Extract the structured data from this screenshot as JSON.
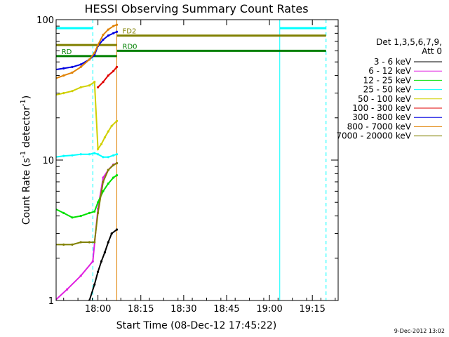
{
  "chart_data": {
    "type": "line",
    "title": "HESSI Observing Summary Count Rates",
    "xlabel": "Start Time (08-Dec-12 17:45:22)",
    "ylabel_main": "Count Rate (s",
    "ylabel_sup1": "-1",
    "ylabel_mid": " detector",
    "ylabel_sup2": "-1",
    "ylabel_end": ")",
    "yscale": "log",
    "ylim": [
      1,
      100
    ],
    "x_ticks": [
      "18:00",
      "18:15",
      "18:30",
      "18:45",
      "19:00",
      "19:15"
    ],
    "y_ticks": [
      "1",
      "10",
      "100"
    ],
    "legend_header": [
      "Det 1,3,5,6,7,9,",
      "Att 0"
    ],
    "footer_date": "9-Dec-2012 13:02",
    "series": [
      {
        "name": "3 - 6 keV",
        "color": "#000000",
        "points": [
          [
            17.95,
            1.0
          ],
          [
            17.98,
            1.3
          ],
          [
            18.0,
            1.6
          ],
          [
            18.02,
            1.9
          ],
          [
            18.04,
            2.2
          ],
          [
            18.06,
            2.6
          ],
          [
            18.08,
            3.0
          ],
          [
            18.11,
            3.2
          ]
        ]
      },
      {
        "name": "6 - 12 keV",
        "color": "#e020e0",
        "points": [
          [
            17.75,
            1.0
          ],
          [
            17.82,
            1.2
          ],
          [
            17.9,
            1.5
          ],
          [
            17.97,
            1.9
          ],
          [
            18.0,
            4.5
          ],
          [
            18.03,
            7.5
          ],
          [
            18.06,
            8.5
          ],
          [
            18.09,
            9.3
          ],
          [
            18.11,
            9.5
          ]
        ]
      },
      {
        "name": "12 - 25 keV",
        "color": "#00e000",
        "points": [
          [
            17.75,
            4.5
          ],
          [
            17.8,
            4.2
          ],
          [
            17.85,
            3.9
          ],
          [
            17.9,
            4.0
          ],
          [
            17.95,
            4.2
          ],
          [
            17.98,
            4.3
          ],
          [
            18.0,
            5.0
          ],
          [
            18.03,
            6.0
          ],
          [
            18.06,
            6.8
          ],
          [
            18.09,
            7.5
          ],
          [
            18.11,
            7.8
          ]
        ]
      },
      {
        "name": "25 - 50 keV",
        "color": "#00ffff",
        "points": [
          [
            17.75,
            10.5
          ],
          [
            17.8,
            10.7
          ],
          [
            17.85,
            10.8
          ],
          [
            17.9,
            11.0
          ],
          [
            17.95,
            11.0
          ],
          [
            17.98,
            11.2
          ],
          [
            18.0,
            11.0
          ],
          [
            18.03,
            10.5
          ],
          [
            18.06,
            10.5
          ],
          [
            18.09,
            10.8
          ],
          [
            18.11,
            11.0
          ]
        ]
      },
      {
        "name": "50 - 100 keV",
        "color": "#d0d000",
        "points": [
          [
            17.75,
            29
          ],
          [
            17.8,
            30
          ],
          [
            17.85,
            31
          ],
          [
            17.9,
            33
          ],
          [
            17.95,
            34
          ],
          [
            17.98,
            36
          ],
          [
            18.0,
            12
          ],
          [
            18.02,
            13
          ],
          [
            18.04,
            14.5
          ],
          [
            18.06,
            16
          ],
          [
            18.08,
            17.5
          ],
          [
            18.11,
            19
          ]
        ]
      },
      {
        "name": "100 - 300 keV",
        "color": "#e00000",
        "points": [
          [
            18.0,
            33
          ],
          [
            18.03,
            36
          ],
          [
            18.06,
            40
          ],
          [
            18.09,
            43
          ],
          [
            18.11,
            46
          ]
        ]
      },
      {
        "name": "300 - 800 keV",
        "color": "#0000e0",
        "points": [
          [
            17.75,
            44
          ],
          [
            17.8,
            45
          ],
          [
            17.85,
            46
          ],
          [
            17.9,
            48
          ],
          [
            17.95,
            52
          ],
          [
            17.98,
            56
          ],
          [
            18.0,
            65
          ],
          [
            18.03,
            72
          ],
          [
            18.06,
            77
          ],
          [
            18.09,
            80
          ],
          [
            18.11,
            82
          ]
        ]
      },
      {
        "name": "800 - 7000 keV",
        "color": "#e08000",
        "points": [
          [
            17.75,
            38
          ],
          [
            17.8,
            40
          ],
          [
            17.85,
            42
          ],
          [
            17.9,
            46
          ],
          [
            17.95,
            52
          ],
          [
            17.98,
            58
          ],
          [
            18.0,
            66
          ],
          [
            18.03,
            78
          ],
          [
            18.06,
            85
          ],
          [
            18.09,
            90
          ],
          [
            18.11,
            92
          ]
        ]
      },
      {
        "name": "7000 - 20000 keV",
        "color": "#808000",
        "points": [
          [
            17.75,
            2.5
          ],
          [
            17.8,
            2.5
          ],
          [
            17.85,
            2.5
          ],
          [
            17.9,
            2.6
          ],
          [
            17.95,
            2.6
          ],
          [
            17.98,
            2.6
          ],
          [
            18.0,
            4.2
          ],
          [
            18.03,
            7.0
          ],
          [
            18.06,
            8.5
          ],
          [
            18.09,
            9.2
          ],
          [
            18.11,
            9.5
          ]
        ]
      }
    ],
    "flags": [
      {
        "label": "RD",
        "color": "#008000",
        "y": 55,
        "x_start": 17.755,
        "x_end": 18.11
      },
      {
        "label": "RD0",
        "color": "#008000",
        "y": 60,
        "x_start": 18.11,
        "x_end": 19.33
      },
      {
        "label": "FD2",
        "color": "#808000",
        "y": 77,
        "x_start": 18.11,
        "x_end": 19.33
      },
      {
        "label": "",
        "color": "#808000",
        "y": 66,
        "x_start": 17.755,
        "x_end": 18.11
      },
      {
        "label": "",
        "color": "#00ffff",
        "y": 87,
        "x_start": 17.755,
        "x_end": 17.97
      },
      {
        "label": "",
        "color": "#00ffff",
        "y": 87,
        "x_start": 19.06,
        "x_end": 19.33
      }
    ],
    "vlines": [
      {
        "x": 17.97,
        "color": "#00ffff",
        "dash": true
      },
      {
        "x": 18.11,
        "color": "#e08000",
        "dash": false
      },
      {
        "x": 19.06,
        "color": "#00ffff",
        "dash": false
      },
      {
        "x": 19.33,
        "color": "#00ffff",
        "dash": true
      }
    ],
    "grid": false,
    "legend_position": "right"
  }
}
